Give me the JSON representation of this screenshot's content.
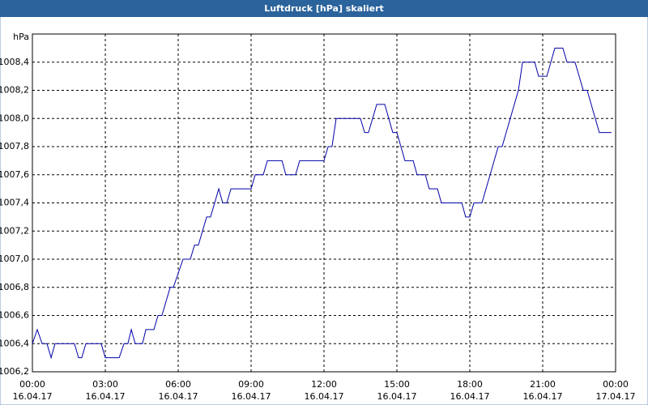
{
  "chart_data": {
    "type": "line",
    "title": "Luftdruck [hPa] skaliert",
    "y_label": "hPa",
    "x": [
      0,
      0.2,
      0.4,
      0.6,
      0.77,
      0.93,
      1.73,
      1.9,
      2.03,
      2.2,
      2.83,
      3.0,
      3.57,
      3.77,
      3.93,
      4.07,
      4.23,
      4.53,
      4.67,
      5.0,
      5.17,
      5.33,
      5.5,
      5.67,
      5.8,
      6.0,
      6.2,
      6.5,
      6.67,
      6.83,
      7.0,
      7.17,
      7.33,
      7.5,
      7.67,
      7.83,
      8.0,
      8.17,
      9.0,
      9.17,
      9.5,
      9.67,
      10.27,
      10.43,
      10.83,
      11.0,
      12.0,
      12.17,
      12.33,
      12.5,
      13.5,
      13.67,
      13.83,
      14.17,
      14.5,
      14.83,
      15.0,
      15.33,
      15.67,
      15.83,
      16.17,
      16.33,
      16.67,
      16.83,
      17.67,
      17.83,
      18.0,
      18.17,
      18.5,
      19.17,
      19.33,
      20.0,
      20.17,
      20.67,
      20.83,
      21.17,
      21.5,
      21.83,
      22.0,
      22.33,
      22.67,
      22.83,
      23.33,
      23.83
    ],
    "series": [
      {
        "color": "#0000a8",
        "values": [
          1006.4,
          1006.5,
          1006.4,
          1006.4,
          1006.3,
          1006.4,
          1006.4,
          1006.3,
          1006.3,
          1006.4,
          1006.4,
          1006.3,
          1006.3,
          1006.4,
          1006.4,
          1006.5,
          1006.4,
          1006.4,
          1006.5,
          1006.5,
          1006.6,
          1006.6,
          1006.7,
          1006.8,
          1006.8,
          1006.9,
          1007.0,
          1007.0,
          1007.1,
          1007.1,
          1007.2,
          1007.3,
          1007.3,
          1007.4,
          1007.5,
          1007.4,
          1007.4,
          1007.5,
          1007.5,
          1007.6,
          1007.6,
          1007.7,
          1007.7,
          1007.6,
          1007.6,
          1007.7,
          1007.7,
          1007.8,
          1007.8,
          1008.0,
          1008.0,
          1007.9,
          1007.9,
          1008.1,
          1008.1,
          1007.9,
          1007.9,
          1007.7,
          1007.7,
          1007.6,
          1007.6,
          1007.5,
          1007.5,
          1007.4,
          1007.4,
          1007.3,
          1007.3,
          1007.4,
          1007.4,
          1007.8,
          1007.8,
          1008.2,
          1008.4,
          1008.4,
          1008.3,
          1008.3,
          1008.5,
          1008.5,
          1008.4,
          1008.4,
          1008.2,
          1008.2,
          1007.9,
          1007.9
        ]
      }
    ],
    "xlim": [
      0,
      24
    ],
    "xticks": [
      {
        "value": 0,
        "label": [
          "00:00",
          "16.04.17"
        ]
      },
      {
        "value": 3,
        "label": [
          "03:00",
          "16.04.17"
        ]
      },
      {
        "value": 6,
        "label": [
          "06:00",
          "16.04.17"
        ]
      },
      {
        "value": 9,
        "label": [
          "09:00",
          "16.04.17"
        ]
      },
      {
        "value": 12,
        "label": [
          "12:00",
          "16.04.17"
        ]
      },
      {
        "value": 15,
        "label": [
          "15:00",
          "16.04.17"
        ]
      },
      {
        "value": 18,
        "label": [
          "18:00",
          "16.04.17"
        ]
      },
      {
        "value": 21,
        "label": [
          "21:00",
          "16.04.17"
        ]
      },
      {
        "value": 24,
        "label": [
          "00:00",
          "17.04.17"
        ]
      }
    ],
    "ylim": [
      1006.2,
      1008.6
    ],
    "yticks": [
      {
        "value": 1006.2,
        "label": "1006,2"
      },
      {
        "value": 1006.4,
        "label": "1006,4"
      },
      {
        "value": 1006.6,
        "label": "1006,6"
      },
      {
        "value": 1006.8,
        "label": "1006,8"
      },
      {
        "value": 1007.0,
        "label": "1007,0"
      },
      {
        "value": 1007.2,
        "label": "1007,2"
      },
      {
        "value": 1007.4,
        "label": "1007,4"
      },
      {
        "value": 1007.6,
        "label": "1007,6"
      },
      {
        "value": 1007.8,
        "label": "1007,8"
      },
      {
        "value": 1008.0,
        "label": "1008,0"
      },
      {
        "value": 1008.2,
        "label": "1008,2"
      },
      {
        "value": 1008.4,
        "label": "1008,4"
      }
    ],
    "grid": true
  }
}
